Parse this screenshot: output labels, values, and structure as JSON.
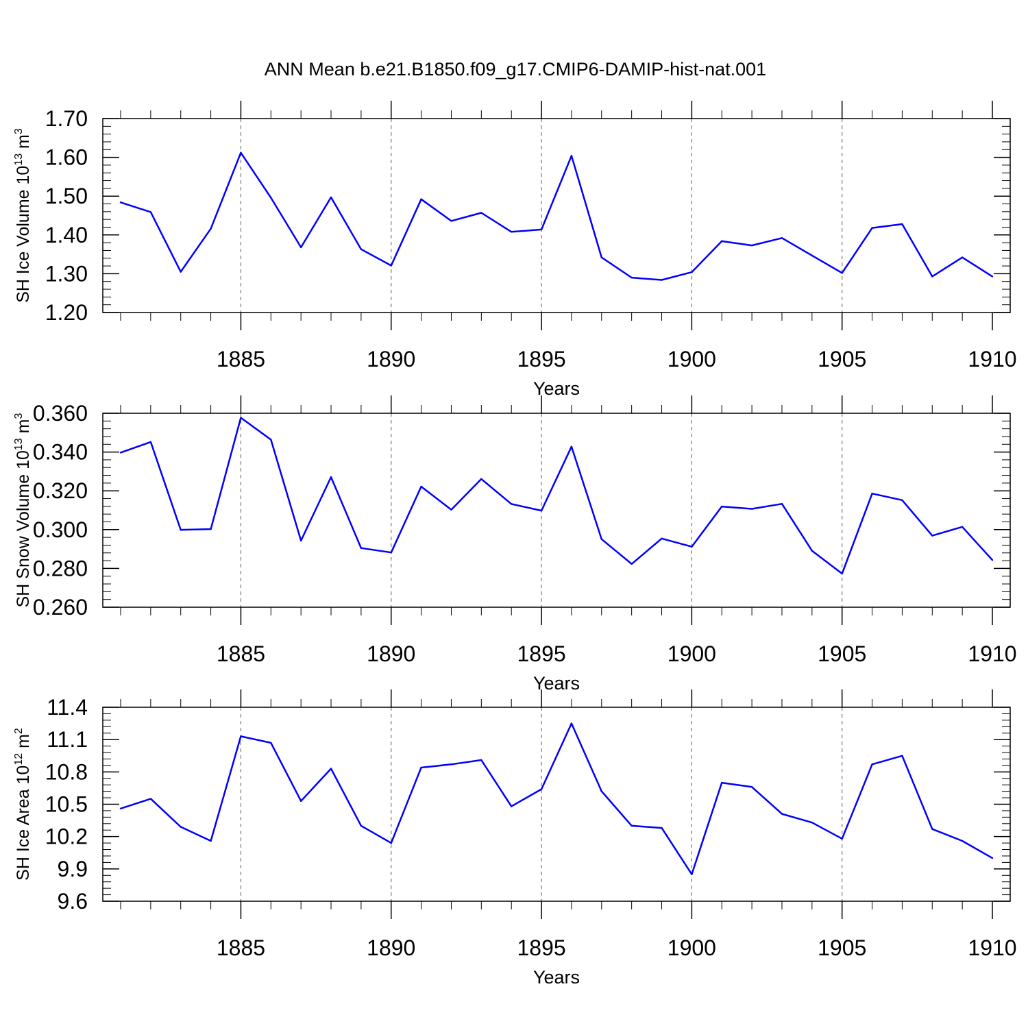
{
  "title": "ANN Mean b.e21.B1850.f09_g17.CMIP6-DAMIP-hist-nat.001",
  "line_color": "#0000ff",
  "chart_data": [
    {
      "type": "line",
      "ylabel_main": "SH Ice Volume 10",
      "ylabel_exp": "13",
      "ylabel_unit": " m",
      "ylabel_unit_exp": "3",
      "xlabel": "Years",
      "xlim": [
        1881,
        1910
      ],
      "ylim": [
        1.2,
        1.7
      ],
      "yticks": [
        "1.20",
        "1.30",
        "1.40",
        "1.50",
        "1.60",
        "1.70"
      ],
      "ytick_values": [
        1.2,
        1.3,
        1.4,
        1.5,
        1.6,
        1.7
      ],
      "xticks": [
        "1885",
        "1890",
        "1895",
        "1900",
        "1905",
        "1910"
      ],
      "xtick_values": [
        1885,
        1890,
        1895,
        1900,
        1905,
        1910
      ],
      "y_minor_step": 0.02,
      "x": [
        1881,
        1882,
        1883,
        1884,
        1885,
        1886,
        1887,
        1888,
        1889,
        1890,
        1891,
        1892,
        1893,
        1894,
        1895,
        1896,
        1897,
        1898,
        1899,
        1900,
        1901,
        1902,
        1903,
        1904,
        1905,
        1906,
        1907,
        1908,
        1909,
        1910
      ],
      "values": [
        1.484,
        1.459,
        1.305,
        1.416,
        1.612,
        1.496,
        1.368,
        1.497,
        1.363,
        1.321,
        1.492,
        1.436,
        1.457,
        1.408,
        1.414,
        1.604,
        1.342,
        1.29,
        1.284,
        1.304,
        1.384,
        1.373,
        1.392,
        1.347,
        1.302,
        1.418,
        1.428,
        1.293,
        1.342,
        1.293
      ]
    },
    {
      "type": "line",
      "ylabel_main": "SH Snow Volume 10",
      "ylabel_exp": "13",
      "ylabel_unit": " m",
      "ylabel_unit_exp": "3",
      "xlabel": "Years",
      "xlim": [
        1881,
        1910
      ],
      "ylim": [
        0.26,
        0.36
      ],
      "yticks": [
        "0.260",
        "0.280",
        "0.300",
        "0.320",
        "0.340",
        "0.360"
      ],
      "ytick_values": [
        0.26,
        0.28,
        0.3,
        0.32,
        0.34,
        0.36
      ],
      "xticks": [
        "1885",
        "1890",
        "1895",
        "1900",
        "1905",
        "1910"
      ],
      "xtick_values": [
        1885,
        1890,
        1895,
        1900,
        1905,
        1910
      ],
      "y_minor_step": 0.004,
      "x": [
        1881,
        1882,
        1883,
        1884,
        1885,
        1886,
        1887,
        1888,
        1889,
        1890,
        1891,
        1892,
        1893,
        1894,
        1895,
        1896,
        1897,
        1898,
        1899,
        1900,
        1901,
        1902,
        1903,
        1904,
        1905,
        1906,
        1907,
        1908,
        1909,
        1910
      ],
      "values": [
        0.3397,
        0.3452,
        0.2999,
        0.3003,
        0.3577,
        0.3464,
        0.2943,
        0.3271,
        0.2905,
        0.2882,
        0.3222,
        0.3103,
        0.3261,
        0.3132,
        0.3098,
        0.3428,
        0.2951,
        0.2823,
        0.2954,
        0.2912,
        0.3119,
        0.3107,
        0.3133,
        0.2891,
        0.2773,
        0.3186,
        0.3152,
        0.2969,
        0.3014,
        0.2843
      ]
    },
    {
      "type": "line",
      "ylabel_main": "SH Ice Area 10",
      "ylabel_exp": "12",
      "ylabel_unit": " m",
      "ylabel_unit_exp": "2",
      "xlabel": "Years",
      "xlim": [
        1881,
        1910
      ],
      "ylim": [
        9.6,
        11.4
      ],
      "yticks": [
        "9.6",
        "9.9",
        "10.2",
        "10.5",
        "10.8",
        "11.1",
        "11.4"
      ],
      "ytick_values": [
        9.6,
        9.9,
        10.2,
        10.5,
        10.8,
        11.1,
        11.4
      ],
      "xticks": [
        "1885",
        "1890",
        "1895",
        "1900",
        "1905",
        "1910"
      ],
      "xtick_values": [
        1885,
        1890,
        1895,
        1900,
        1905,
        1910
      ],
      "y_minor_step": 0.06,
      "x": [
        1881,
        1882,
        1883,
        1884,
        1885,
        1886,
        1887,
        1888,
        1889,
        1890,
        1891,
        1892,
        1893,
        1894,
        1895,
        1896,
        1897,
        1898,
        1899,
        1900,
        1901,
        1902,
        1903,
        1904,
        1905,
        1906,
        1907,
        1908,
        1909,
        1910
      ],
      "values": [
        10.46,
        10.55,
        10.29,
        10.16,
        11.13,
        11.07,
        10.53,
        10.83,
        10.3,
        10.14,
        10.84,
        10.87,
        10.91,
        10.48,
        10.64,
        11.25,
        10.62,
        10.3,
        10.28,
        9.85,
        10.7,
        10.66,
        10.41,
        10.33,
        10.18,
        10.87,
        10.95,
        10.27,
        10.16,
        10.0
      ]
    }
  ]
}
